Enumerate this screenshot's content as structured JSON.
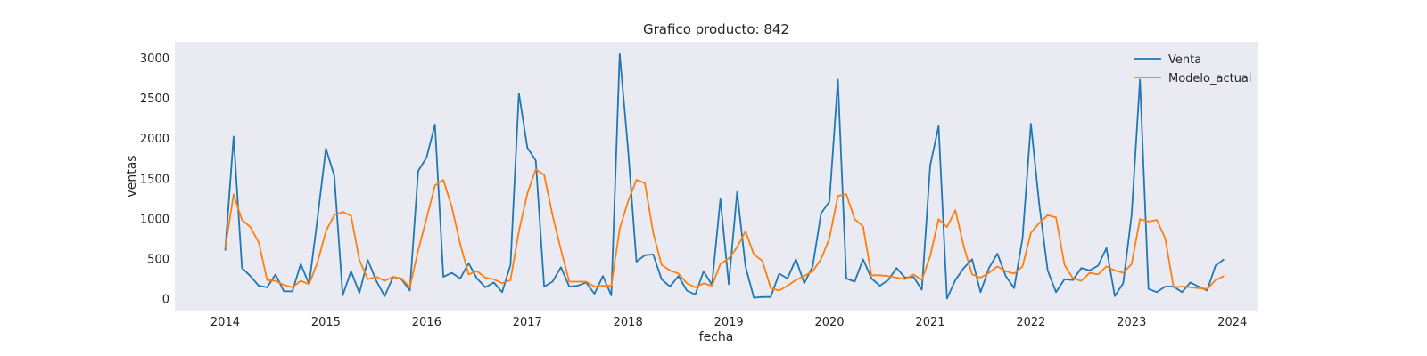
{
  "chart_data": {
    "type": "line",
    "title": "Grafico producto: 842",
    "xlabel": "fecha",
    "ylabel": "ventas",
    "x_start": "2014-01",
    "x_frequency": "monthly",
    "xlim": [
      "2013-07",
      "2024-04"
    ],
    "ylim": [
      -150,
      3200
    ],
    "xticks": [
      "2014",
      "2015",
      "2016",
      "2017",
      "2018",
      "2019",
      "2020",
      "2021",
      "2022",
      "2023",
      "2024"
    ],
    "yticks": [
      0,
      500,
      1000,
      1500,
      2000,
      2500,
      3000
    ],
    "grid": false,
    "background": "#eaeaf2",
    "legend_position": "top-right",
    "series": [
      {
        "name": "Venta",
        "color": "#1f77b4",
        "values": [
          600,
          2020,
          380,
          280,
          160,
          140,
          300,
          90,
          90,
          430,
          180,
          1000,
          1870,
          1530,
          40,
          340,
          70,
          480,
          220,
          30,
          270,
          240,
          100,
          1590,
          1760,
          2170,
          270,
          320,
          250,
          440,
          250,
          140,
          200,
          80,
          420,
          2560,
          1880,
          1720,
          150,
          210,
          390,
          150,
          160,
          200,
          60,
          280,
          40,
          3050,
          1860,
          460,
          540,
          550,
          240,
          150,
          280,
          100,
          50,
          340,
          170,
          1240,
          180,
          1330,
          400,
          10,
          20,
          20,
          310,
          250,
          490,
          190,
          400,
          1060,
          1210,
          2730,
          250,
          210,
          490,
          250,
          160,
          230,
          380,
          260,
          270,
          110,
          1660,
          2150,
          0,
          230,
          380,
          490,
          80,
          380,
          560,
          280,
          130,
          750,
          2180,
          1170,
          350,
          80,
          240,
          230,
          380,
          350,
          410,
          630,
          30,
          190,
          1040,
          2730,
          120,
          80,
          150,
          150,
          80,
          200,
          150,
          100,
          410,
          490
        ]
      },
      {
        "name": "Modelo_actual",
        "color": "#ff7f0e",
        "values": [
          630,
          1300,
          980,
          890,
          700,
          230,
          220,
          170,
          140,
          220,
          180,
          450,
          840,
          1040,
          1080,
          1030,
          480,
          240,
          270,
          220,
          270,
          250,
          140,
          600,
          1000,
          1410,
          1480,
          1140,
          680,
          300,
          340,
          260,
          240,
          190,
          230,
          840,
          1310,
          1610,
          1540,
          1040,
          610,
          210,
          210,
          210,
          150,
          160,
          160,
          870,
          1210,
          1480,
          1440,
          820,
          420,
          350,
          310,
          190,
          140,
          190,
          160,
          430,
          500,
          640,
          840,
          550,
          470,
          130,
          100,
          160,
          230,
          280,
          340,
          490,
          750,
          1280,
          1300,
          990,
          900,
          290,
          290,
          280,
          260,
          240,
          300,
          230,
          530,
          990,
          890,
          1100,
          650,
          300,
          260,
          320,
          400,
          340,
          310,
          400,
          820,
          940,
          1040,
          1010,
          420,
          250,
          220,
          320,
          300,
          400,
          350,
          320,
          430,
          990,
          960,
          980,
          750,
          140,
          150,
          140,
          130,
          120,
          230,
          280
        ]
      }
    ]
  }
}
